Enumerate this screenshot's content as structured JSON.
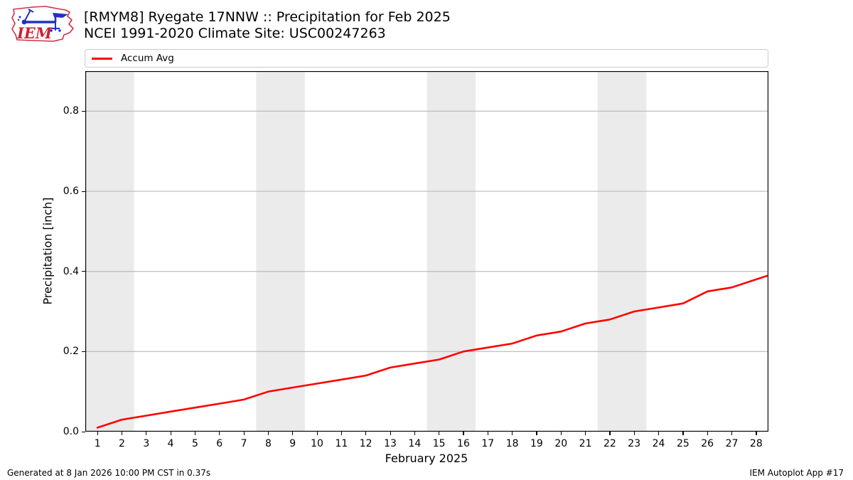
{
  "header": {
    "logo_text": "IEM",
    "title_line1": "[RMYM8] Ryegate 17NNW :: Precipitation for Feb 2025",
    "title_line2": "NCEI 1991-2020 Climate Site: USC00247263"
  },
  "legend": {
    "items": [
      {
        "label": "Accum Avg",
        "color": "#ff0000"
      }
    ]
  },
  "chart_data": {
    "type": "line",
    "title": "[RMYM8] Ryegate 17NNW :: Precipitation for Feb 2025 — NCEI 1991-2020 Climate Site: USC00247263",
    "xlabel": "February 2025",
    "ylabel": "Precipitation [inch]",
    "xlim": [
      0.5,
      28.5
    ],
    "ylim": [
      0,
      0.9
    ],
    "grid": "horizontal",
    "legend_position": "top",
    "x_tick_labels": [
      "1",
      "2",
      "3",
      "4",
      "5",
      "6",
      "7",
      "8",
      "9",
      "10",
      "11",
      "12",
      "13",
      "14",
      "15",
      "16",
      "17",
      "18",
      "19",
      "20",
      "21",
      "22",
      "23",
      "24",
      "25",
      "26",
      "27",
      "28"
    ],
    "y_tick_labels": [
      "0.0",
      "0.2",
      "0.4",
      "0.6",
      "0.8"
    ],
    "weekend_bands": [
      [
        0.5,
        2.5
      ],
      [
        7.5,
        9.5
      ],
      [
        14.5,
        16.5
      ],
      [
        21.5,
        23.5
      ]
    ],
    "band_color": "#ebebeb",
    "grid_color": "#b0b0b0",
    "series": [
      {
        "name": "Accum Avg",
        "color": "#ff0000",
        "x": [
          1,
          2,
          3,
          4,
          5,
          6,
          7,
          8,
          9,
          10,
          11,
          12,
          13,
          14,
          15,
          16,
          17,
          18,
          19,
          20,
          21,
          22,
          23,
          24,
          25,
          26,
          27,
          28,
          28.5
        ],
        "y": [
          0.01,
          0.03,
          0.04,
          0.05,
          0.06,
          0.07,
          0.08,
          0.1,
          0.11,
          0.12,
          0.13,
          0.14,
          0.16,
          0.17,
          0.18,
          0.2,
          0.21,
          0.22,
          0.24,
          0.25,
          0.27,
          0.28,
          0.3,
          0.31,
          0.32,
          0.35,
          0.36,
          0.38,
          0.39
        ]
      }
    ]
  },
  "footer": {
    "left": "Generated at 8 Jan 2026 10:00 PM CST in 0.37s",
    "right": "IEM Autoplot App #17"
  }
}
